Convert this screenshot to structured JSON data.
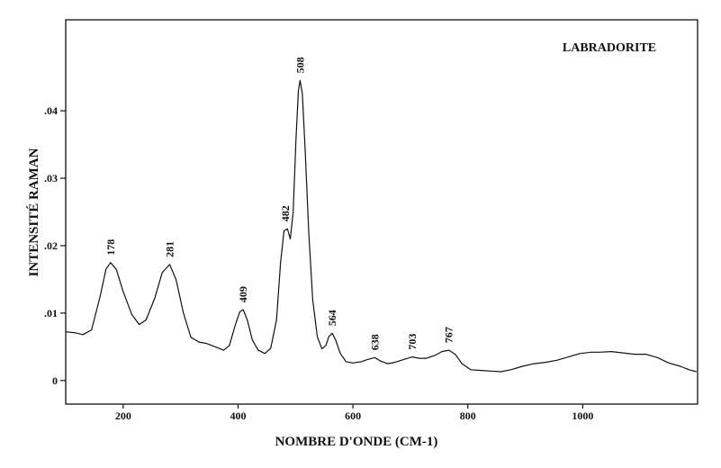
{
  "chart_data": {
    "type": "line",
    "title": "LABRADORITE",
    "xlabel": "NOMBRE D'ONDE (CM-1)",
    "ylabel": "INTENSITÉ RAMAN",
    "xlim": [
      100,
      1200
    ],
    "ylim": [
      -0.0035,
      0.0535
    ],
    "x_ticks": [
      200,
      400,
      600,
      800,
      1000
    ],
    "x_tick_labels": [
      "200",
      "400",
      "600",
      "800",
      "1000"
    ],
    "y_ticks": [
      0,
      0.01,
      0.02,
      0.03,
      0.04
    ],
    "y_tick_labels": [
      "0",
      ".01",
      ".02",
      ".03",
      ".04"
    ],
    "grid": false,
    "legend": "none",
    "series": [
      {
        "color": "#111111",
        "points": [
          [
            100,
            0.0072
          ],
          [
            115,
            0.0071
          ],
          [
            130,
            0.0068
          ],
          [
            145,
            0.0075
          ],
          [
            160,
            0.0125
          ],
          [
            170,
            0.0165
          ],
          [
            178,
            0.0175
          ],
          [
            188,
            0.0165
          ],
          [
            200,
            0.0132
          ],
          [
            215,
            0.0098
          ],
          [
            228,
            0.0083
          ],
          [
            240,
            0.009
          ],
          [
            255,
            0.0122
          ],
          [
            268,
            0.016
          ],
          [
            281,
            0.0172
          ],
          [
            292,
            0.015
          ],
          [
            305,
            0.01
          ],
          [
            318,
            0.0064
          ],
          [
            332,
            0.0057
          ],
          [
            345,
            0.0055
          ],
          [
            360,
            0.005
          ],
          [
            375,
            0.0045
          ],
          [
            385,
            0.0052
          ],
          [
            395,
            0.0082
          ],
          [
            403,
            0.0102
          ],
          [
            409,
            0.0105
          ],
          [
            416,
            0.009
          ],
          [
            425,
            0.006
          ],
          [
            435,
            0.0045
          ],
          [
            447,
            0.004
          ],
          [
            457,
            0.0048
          ],
          [
            467,
            0.009
          ],
          [
            474,
            0.0175
          ],
          [
            480,
            0.0222
          ],
          [
            486,
            0.0225
          ],
          [
            491,
            0.021
          ],
          [
            496,
            0.025
          ],
          [
            501,
            0.036
          ],
          [
            505,
            0.043
          ],
          [
            508,
            0.0445
          ],
          [
            512,
            0.0425
          ],
          [
            517,
            0.034
          ],
          [
            523,
            0.022
          ],
          [
            530,
            0.012
          ],
          [
            538,
            0.0065
          ],
          [
            546,
            0.0047
          ],
          [
            553,
            0.0052
          ],
          [
            558,
            0.0065
          ],
          [
            564,
            0.007
          ],
          [
            570,
            0.006
          ],
          [
            578,
            0.004
          ],
          [
            588,
            0.0028
          ],
          [
            600,
            0.0026
          ],
          [
            615,
            0.0028
          ],
          [
            625,
            0.0031
          ],
          [
            638,
            0.0034
          ],
          [
            648,
            0.0029
          ],
          [
            660,
            0.0025
          ],
          [
            673,
            0.0027
          ],
          [
            688,
            0.0031
          ],
          [
            703,
            0.0035
          ],
          [
            716,
            0.0033
          ],
          [
            728,
            0.0033
          ],
          [
            742,
            0.0037
          ],
          [
            755,
            0.0043
          ],
          [
            767,
            0.0045
          ],
          [
            778,
            0.0039
          ],
          [
            790,
            0.0025
          ],
          [
            805,
            0.0016
          ],
          [
            820,
            0.0015
          ],
          [
            840,
            0.0014
          ],
          [
            858,
            0.0013
          ],
          [
            875,
            0.0016
          ],
          [
            895,
            0.0021
          ],
          [
            915,
            0.0025
          ],
          [
            935,
            0.0027
          ],
          [
            955,
            0.003
          ],
          [
            975,
            0.0035
          ],
          [
            995,
            0.004
          ],
          [
            1015,
            0.0042
          ],
          [
            1030,
            0.0042
          ],
          [
            1050,
            0.0043
          ],
          [
            1070,
            0.0041
          ],
          [
            1090,
            0.0039
          ],
          [
            1110,
            0.0039
          ],
          [
            1130,
            0.0034
          ],
          [
            1150,
            0.0026
          ],
          [
            1170,
            0.0021
          ],
          [
            1185,
            0.0016
          ],
          [
            1198,
            0.0013
          ]
        ]
      }
    ],
    "annotations": [
      {
        "text": "178",
        "x": 178,
        "y": 0.0175
      },
      {
        "text": "281",
        "x": 281,
        "y": 0.0172
      },
      {
        "text": "409",
        "x": 409,
        "y": 0.0105
      },
      {
        "text": "482",
        "x": 482,
        "y": 0.0225
      },
      {
        "text": "508",
        "x": 508,
        "y": 0.0445
      },
      {
        "text": "564",
        "x": 564,
        "y": 0.007
      },
      {
        "text": "638",
        "x": 638,
        "y": 0.0034
      },
      {
        "text": "703",
        "x": 703,
        "y": 0.0035
      },
      {
        "text": "767",
        "x": 767,
        "y": 0.0045
      }
    ]
  }
}
